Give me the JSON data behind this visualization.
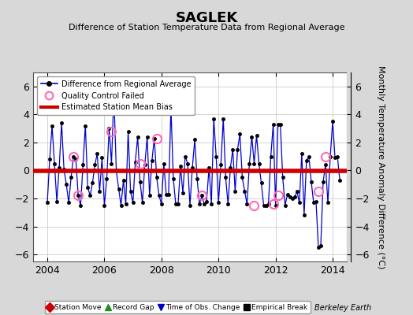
{
  "title": "SAGLEK",
  "subtitle": "Difference of Station Temperature Data from Regional Average",
  "ylabel": "Monthly Temperature Anomaly Difference (°C)",
  "xlabel_bottom": "Berkeley Earth",
  "xlim": [
    2003.5,
    2014.5
  ],
  "ylim": [
    -6.5,
    7.0
  ],
  "yticks": [
    -6,
    -4,
    -2,
    0,
    2,
    4,
    6
  ],
  "xticks": [
    2004,
    2006,
    2008,
    2010,
    2012,
    2014
  ],
  "bias_value": -0.05,
  "background_color": "#d8d8d8",
  "plot_bg_color": "#ffffff",
  "line_color": "#0000cc",
  "bias_color": "#cc0000",
  "qc_color": "#ff69b4",
  "main_series": {
    "x": [
      2004.0,
      2004.083,
      2004.167,
      2004.25,
      2004.333,
      2004.417,
      2004.5,
      2004.583,
      2004.667,
      2004.75,
      2004.833,
      2004.917,
      2005.0,
      2005.083,
      2005.167,
      2005.25,
      2005.333,
      2005.417,
      2005.5,
      2005.583,
      2005.667,
      2005.75,
      2005.833,
      2005.917,
      2006.0,
      2006.083,
      2006.167,
      2006.25,
      2006.333,
      2006.417,
      2006.5,
      2006.583,
      2006.667,
      2006.75,
      2006.833,
      2006.917,
      2007.0,
      2007.083,
      2007.167,
      2007.25,
      2007.333,
      2007.417,
      2007.5,
      2007.583,
      2007.667,
      2007.75,
      2007.833,
      2007.917,
      2008.0,
      2008.083,
      2008.167,
      2008.25,
      2008.333,
      2008.417,
      2008.5,
      2008.583,
      2008.667,
      2008.75,
      2008.833,
      2008.917,
      2009.0,
      2009.083,
      2009.167,
      2009.25,
      2009.333,
      2009.417,
      2009.5,
      2009.583,
      2009.667,
      2009.75,
      2009.833,
      2009.917,
      2010.0,
      2010.083,
      2010.167,
      2010.25,
      2010.333,
      2010.417,
      2010.5,
      2010.583,
      2010.667,
      2010.75,
      2010.833,
      2010.917,
      2011.0,
      2011.083,
      2011.167,
      2011.25,
      2011.333,
      2011.417,
      2011.5,
      2011.583,
      2011.667,
      2011.75,
      2011.833,
      2011.917,
      2012.0,
      2012.083,
      2012.167,
      2012.25,
      2012.333,
      2012.417,
      2012.5,
      2012.583,
      2012.667,
      2012.75,
      2012.833,
      2012.917,
      2013.0,
      2013.083,
      2013.167,
      2013.25,
      2013.333,
      2013.417,
      2013.5,
      2013.583,
      2013.667,
      2013.75,
      2013.833,
      2013.917,
      2014.0,
      2014.083,
      2014.167,
      2014.25
    ],
    "y": [
      -2.3,
      0.8,
      3.2,
      0.5,
      -2.2,
      0.2,
      3.4,
      0.1,
      -1.0,
      -2.3,
      -0.5,
      1.0,
      0.8,
      -1.8,
      -2.5,
      0.4,
      3.2,
      -1.2,
      -1.8,
      -0.9,
      0.4,
      1.2,
      -1.5,
      0.9,
      -2.5,
      -0.6,
      3.0,
      0.5,
      5.5,
      0.0,
      -1.3,
      -2.5,
      -0.7,
      -2.4,
      2.8,
      -1.5,
      -2.3,
      0.6,
      2.4,
      -0.8,
      -2.3,
      0.4,
      2.4,
      -1.8,
      0.7,
      2.3,
      -0.5,
      -1.8,
      -2.4,
      0.5,
      -1.7,
      -1.7,
      4.5,
      -0.6,
      -2.4,
      -2.4,
      0.3,
      -1.6,
      1.0,
      0.5,
      -2.5,
      0.2,
      2.2,
      -0.6,
      -2.4,
      -1.8,
      -2.4,
      -2.2,
      0.2,
      -2.4,
      3.7,
      1.0,
      -2.3,
      0.4,
      3.7,
      -0.5,
      -2.4,
      0.2,
      1.5,
      -1.5,
      1.5,
      2.6,
      -0.5,
      -1.5,
      -2.4,
      0.5,
      2.4,
      0.5,
      2.5,
      0.5,
      -0.9,
      -2.5,
      -2.5,
      -2.4,
      1.0,
      3.3,
      -2.5,
      3.3,
      3.3,
      -0.5,
      -2.5,
      -1.7,
      -1.9,
      -2.0,
      -1.9,
      -1.5,
      -2.3,
      1.2,
      -3.2,
      0.7,
      1.0,
      -0.8,
      -2.3,
      -2.2,
      -5.5,
      -5.4,
      -0.8,
      0.4,
      -2.3,
      1.0,
      3.5,
      0.9,
      1.0,
      -0.7
    ]
  },
  "qc_failed_points": [
    [
      2004.917,
      1.0
    ],
    [
      2005.083,
      -1.8
    ],
    [
      2006.25,
      2.8
    ],
    [
      2007.25,
      0.5
    ],
    [
      2007.833,
      2.3
    ],
    [
      2009.417,
      -1.8
    ],
    [
      2011.25,
      -2.5
    ],
    [
      2011.917,
      -2.4
    ],
    [
      2012.083,
      -1.8
    ],
    [
      2013.5,
      -1.5
    ],
    [
      2013.75,
      1.0
    ]
  ],
  "legend1_entries": [
    {
      "label": "Difference from Regional Average",
      "color": "#0000cc",
      "marker": "o",
      "markersize": 5,
      "linestyle": "-"
    },
    {
      "label": "Quality Control Failed",
      "color": "#ff69b4",
      "marker": "o",
      "markersize": 8,
      "linestyle": "none"
    },
    {
      "label": "Estimated Station Mean Bias",
      "color": "#cc0000",
      "linestyle": "-",
      "linewidth": 3
    }
  ],
  "legend2_entries": [
    {
      "label": "Station Move",
      "color": "#cc0000",
      "marker": "D",
      "markersize": 6
    },
    {
      "label": "Record Gap",
      "color": "#228B22",
      "marker": "^",
      "markersize": 6
    },
    {
      "label": "Time of Obs. Change",
      "color": "#0000cc",
      "marker": "v",
      "markersize": 6
    },
    {
      "label": "Empirical Break",
      "color": "#000000",
      "marker": "s",
      "markersize": 6
    }
  ],
  "title_fontsize": 13,
  "subtitle_fontsize": 8,
  "tick_fontsize": 9,
  "ylabel_fontsize": 8
}
